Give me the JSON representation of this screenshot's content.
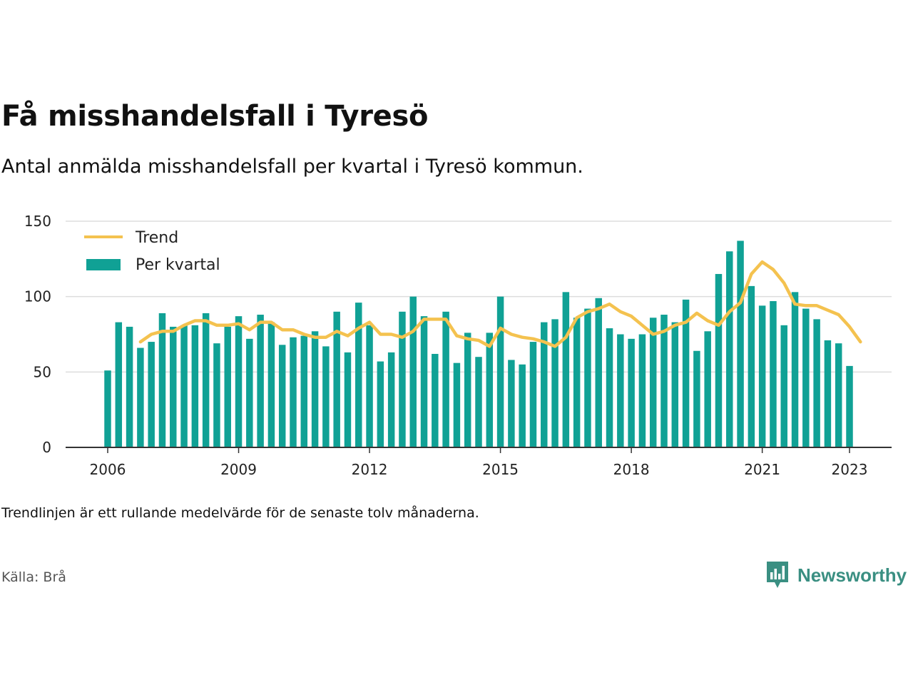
{
  "title": "Få misshandelsfall i Tyresö",
  "subtitle": "Antal anmälda misshandelsfall per kvartal i Tyresö kommun.",
  "note": "Trendlinjen är ett rullande medelvärde för de senaste tolv månaderna.",
  "source": "Källa: Brå",
  "brand": {
    "name": "Newsworthy",
    "icon": "newsworthy-logo-icon",
    "color": "#3a8f82"
  },
  "chart_data": {
    "type": "bar",
    "x_start": 2006,
    "x_step": 0.25,
    "ylim": [
      0,
      150
    ],
    "yticks": [
      0,
      50,
      100,
      150
    ],
    "xticks": [
      "2006",
      "2009",
      "2012",
      "2015",
      "2018",
      "2021",
      "2023"
    ],
    "xtick_values": [
      2006,
      2009,
      2012,
      2015,
      2018,
      2021,
      2023
    ],
    "grid": true,
    "legend_placement": "top-left",
    "series": [
      {
        "name": "Per kvartal",
        "type": "bar",
        "color": "#10a195",
        "values": [
          51,
          83,
          80,
          66,
          70,
          89,
          80,
          81,
          81,
          89,
          69,
          80,
          87,
          72,
          88,
          83,
          68,
          73,
          74,
          77,
          67,
          90,
          63,
          96,
          81,
          57,
          63,
          90,
          100,
          87,
          62,
          90,
          56,
          76,
          60,
          76,
          100,
          58,
          55,
          70,
          83,
          85,
          103,
          86,
          92,
          99,
          79,
          75,
          72,
          75,
          86,
          88,
          83,
          98,
          64,
          77,
          115,
          130,
          137,
          107,
          94,
          97,
          81,
          103,
          92,
          85,
          71,
          69,
          54
        ]
      },
      {
        "name": "Trend",
        "type": "line",
        "color": "#f4c24f",
        "x_offset": 3,
        "values": [
          70,
          75,
          77,
          77,
          81,
          84,
          84,
          81,
          81,
          82,
          78,
          83,
          83,
          78,
          78,
          75,
          73,
          73,
          77,
          74,
          79,
          83,
          75,
          75,
          73,
          77,
          85,
          85,
          85,
          74,
          72,
          71,
          67,
          79,
          75,
          73,
          72,
          70,
          67,
          73,
          86,
          90,
          92,
          95,
          90,
          87,
          81,
          75,
          77,
          81,
          83,
          89,
          84,
          81,
          90,
          96,
          115,
          123,
          118,
          109,
          95,
          94,
          94,
          91,
          88,
          80,
          70
        ]
      }
    ]
  }
}
